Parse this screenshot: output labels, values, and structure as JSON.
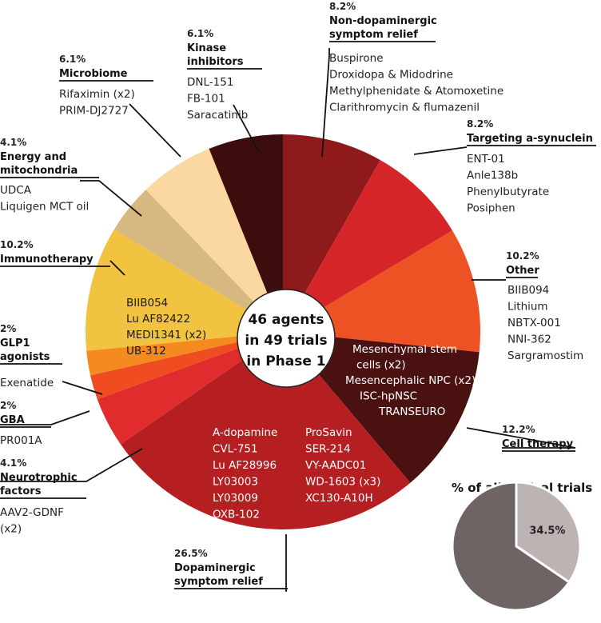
{
  "chart_data": [
    {
      "type": "pie",
      "center_label": [
        "46 agents",
        "in 49 trials",
        "in Phase 1"
      ],
      "slices": [
        {
          "key": "nondopa",
          "percent": "8.2%",
          "value": 8.2,
          "title": [
            "Non-dopaminergic",
            "symptom relief"
          ],
          "agents": [
            "Buspirone",
            "Droxidopa & Midodrine",
            "Methylphenidate & Atomoxetine",
            "Clarithromycin & flumazenil"
          ],
          "color": "#8f1a1c"
        },
        {
          "key": "synuclein",
          "percent": "8.2%",
          "value": 8.2,
          "title": [
            "Targeting a-synuclein"
          ],
          "agents": [
            "ENT-01",
            "Anle138b",
            "Phenylbutyrate",
            "Posiphen"
          ],
          "color": "#d52528"
        },
        {
          "key": "other",
          "percent": "10.2%",
          "value": 10.2,
          "title": [
            "Other"
          ],
          "agents": [
            "BIIB094",
            "Lithium",
            "NBTX-001",
            "NNI-362",
            "Sargramostim"
          ],
          "color": "#ec5224"
        },
        {
          "key": "cell",
          "percent": "12.2%",
          "value": 12.2,
          "title": [
            "Cell therapy"
          ],
          "agents": [
            "Mesenchymal stem",
            "cells (x2)",
            "Mesencephalic NPC (x2)",
            "ISC-hpNSC",
            "TRANSEURO"
          ],
          "color": "#4a1111"
        },
        {
          "key": "dopa",
          "percent": "26.5%",
          "value": 26.5,
          "title": [
            "Dopaminergic",
            "symptom relief"
          ],
          "agents_left": [
            "A-dopamine",
            "CVL-751",
            "Lu AF28996",
            "LY03003",
            "LY03009",
            "OXB-102"
          ],
          "agents_right": [
            "ProSavin",
            "SER-214",
            "VY-AADC01",
            "WD-1603 (x3)",
            "XC130-A10H"
          ],
          "color": "#b51f22"
        },
        {
          "key": "neuro",
          "percent": "4.1%",
          "value": 4.1,
          "title": [
            "Neurotrophic",
            "factors"
          ],
          "agents": [
            "AAV2-GDNF",
            "(x2)"
          ],
          "color": "#e02c2c"
        },
        {
          "key": "gba",
          "percent": "2%",
          "value": 2,
          "title": [
            "GBA"
          ],
          "agents": [
            "PR001A"
          ],
          "color": "#f04c22"
        },
        {
          "key": "glp1",
          "percent": "2%",
          "value": 2,
          "title": [
            "GLP1",
            "agonists"
          ],
          "agents": [
            "Exenatide"
          ],
          "color": "#f58a1f"
        },
        {
          "key": "immuno",
          "percent": "10.2%",
          "value": 10.2,
          "title": [
            "Immunotherapy"
          ],
          "agents": [
            "BIIB054",
            "Lu AF82422",
            "MEDI1341 (x2)",
            "UB-312"
          ],
          "color": "#f1c340"
        },
        {
          "key": "energy",
          "percent": "4.1%",
          "value": 4.1,
          "title": [
            "Energy and",
            "mitochondria"
          ],
          "agents": [
            "UDCA",
            "Liquigen MCT oil"
          ],
          "color": "#d7b880"
        },
        {
          "key": "micro",
          "percent": "6.1%",
          "value": 6.1,
          "title": [
            "Microbiome"
          ],
          "agents": [
            "Rifaximin (x2)",
            "PRIM-DJ2727"
          ],
          "color": "#fbd8a0"
        },
        {
          "key": "kinase",
          "percent": "6.1%",
          "value": 6.1,
          "title": [
            "Kinase",
            "inhibitors"
          ],
          "agents": [
            "DNL-151",
            "FB-101",
            "Saracatinib"
          ],
          "color": "#3d0d0d"
        }
      ]
    },
    {
      "type": "pie",
      "title": "% of all clinical trials",
      "slices": [
        {
          "label": "34.5%",
          "value": 34.5,
          "color": "#bdb3b3"
        },
        {
          "label": "",
          "value": 65.5,
          "color": "#6e6464"
        }
      ]
    }
  ]
}
